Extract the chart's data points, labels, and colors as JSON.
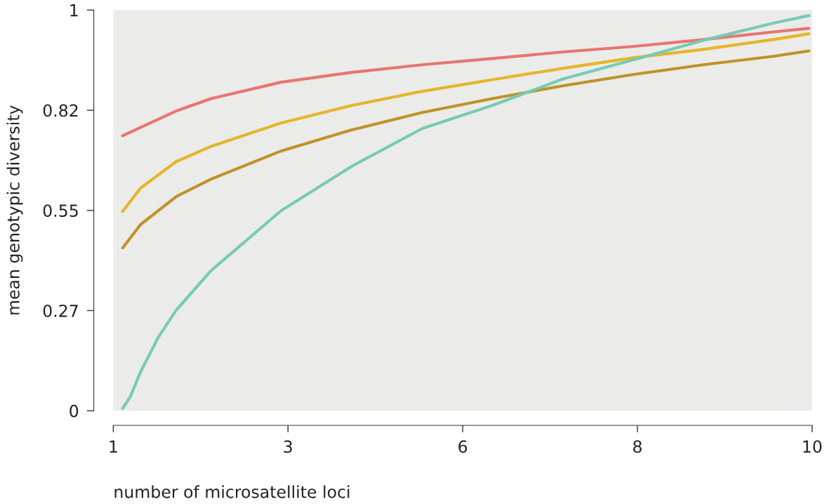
{
  "chart_data": {
    "type": "line",
    "xlabel": "number of microsatellite loci",
    "ylabel": "mean genotypic diversity",
    "xlim": [
      1,
      10
    ],
    "ylim": [
      0,
      1.1
    ],
    "xticks": [
      1,
      {
        "value": 3.25,
        "label": "3"
      },
      {
        "value": 5.5,
        "label": "6"
      },
      {
        "value": 7.75,
        "label": "8"
      },
      10
    ],
    "yticks": [
      0,
      {
        "value": 0.275,
        "label": "0.27"
      },
      0.55,
      {
        "value": 0.825,
        "label": "0.82"
      },
      {
        "value": 1.1,
        "label": "1"
      }
    ],
    "grid": false,
    "legend": false,
    "marker": "none",
    "line_style": "solid",
    "series": [
      {
        "color": "#e8756f",
        "x": [
          1.12,
          1.81,
          2.26,
          3.16,
          4.07,
          4.98,
          5.88,
          6.79,
          7.69,
          8.6,
          9.5,
          9.96
        ],
        "values": [
          0.755,
          0.823,
          0.857,
          0.902,
          0.929,
          0.95,
          0.967,
          0.985,
          1.0,
          1.019,
          1.04,
          1.05
        ]
      },
      {
        "color": "#e5b52a",
        "x": [
          1.12,
          1.35,
          1.81,
          2.26,
          3.16,
          4.07,
          4.98,
          5.88,
          6.79,
          7.69,
          8.6,
          9.5,
          9.96
        ],
        "values": [
          0.547,
          0.611,
          0.684,
          0.726,
          0.79,
          0.838,
          0.877,
          0.909,
          0.94,
          0.969,
          0.992,
          1.019,
          1.035
        ]
      },
      {
        "color": "#bf9328",
        "x": [
          1.12,
          1.35,
          1.81,
          2.26,
          3.16,
          4.07,
          4.98,
          5.88,
          6.79,
          7.69,
          8.6,
          9.5,
          9.96
        ],
        "values": [
          0.447,
          0.511,
          0.588,
          0.636,
          0.713,
          0.771,
          0.819,
          0.857,
          0.892,
          0.923,
          0.95,
          0.973,
          0.988
        ]
      },
      {
        "color": "#76cbb4",
        "x": [
          1.12,
          1.22,
          1.35,
          1.58,
          1.81,
          2.26,
          3.16,
          4.07,
          4.98,
          5.88,
          6.79,
          7.69,
          8.6,
          9.5,
          9.96
        ],
        "values": [
          0.006,
          0.039,
          0.106,
          0.202,
          0.276,
          0.385,
          0.549,
          0.671,
          0.775,
          0.838,
          0.911,
          0.963,
          1.017,
          1.064,
          1.085
        ]
      }
    ]
  }
}
